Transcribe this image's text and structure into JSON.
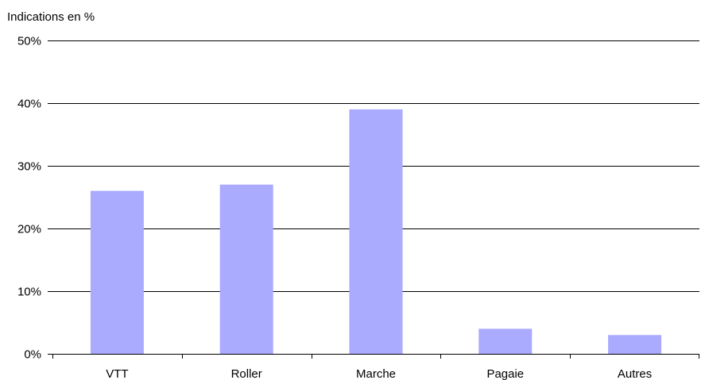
{
  "chart_data": {
    "type": "bar",
    "ylabel": "Indications en %",
    "categories": [
      "VTT",
      "Roller",
      "Marche",
      "Pagaie",
      "Autres"
    ],
    "values": [
      26,
      27,
      39,
      4,
      3
    ],
    "ylim": [
      0,
      50
    ],
    "yticks": [
      0,
      10,
      20,
      30,
      40,
      50
    ],
    "ytick_suffix": "%",
    "grid": true,
    "bar_color": "#aaaaff",
    "grid_color": "#000000"
  }
}
